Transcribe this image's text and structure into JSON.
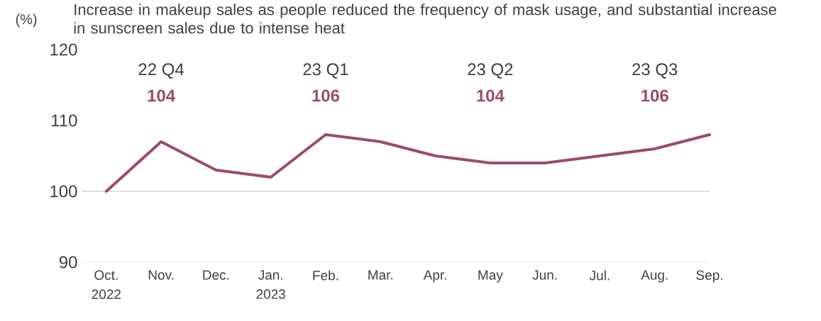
{
  "chart_data": {
    "type": "line",
    "title": "Increase in makeup sales as people reduced the frequency of mask usage, and substantial increase in sunscreen sales due to intense heat",
    "ylabel": "(%)",
    "categories": [
      "Oct. 2022",
      "Nov.",
      "Dec.",
      "Jan. 2023",
      "Feb.",
      "Mar.",
      "Apr.",
      "May",
      "Jun.",
      "Jul.",
      "Aug.",
      "Sep."
    ],
    "series": [
      {
        "color": "#9c4a6e",
        "values": [
          100,
          107,
          103,
          102,
          108,
          107,
          105,
          104,
          104,
          105,
          106,
          108
        ]
      }
    ],
    "ylim": [
      90,
      120
    ],
    "yticks": [
      90,
      100,
      110,
      120
    ],
    "ref_lines": [
      {
        "axis": "y",
        "value": 100,
        "color": "#bfbfbf"
      }
    ],
    "annotations": [
      "22 Q4",
      "104",
      "23 Q1",
      "106",
      "23 Q2",
      "104",
      "23 Q3",
      "106"
    ],
    "grid": false,
    "marker": "none",
    "line_style": "solid"
  }
}
